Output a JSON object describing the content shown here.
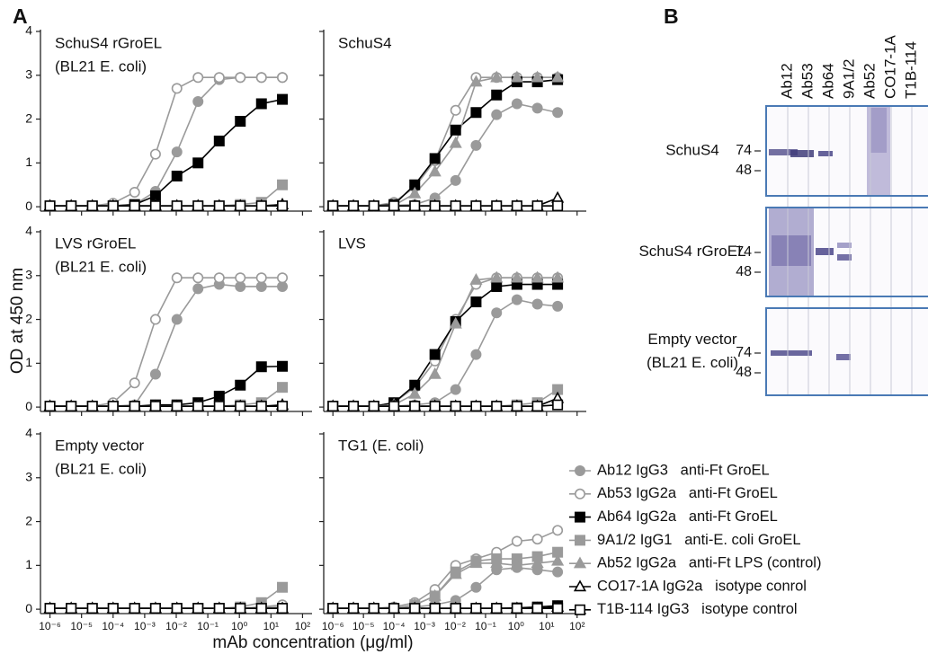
{
  "chart_data": {
    "type": "line",
    "panel_label": "A",
    "log_x": true,
    "x_label": "mAb concentration (μg/ml)",
    "y_label": "OD at 450 nm",
    "panels": [
      {
        "title": "SchuS4 rGroEL",
        "subtitle": "(BL21 E. coli)"
      },
      {
        "title": "SchuS4"
      },
      {
        "title": "LVS rGroEL",
        "subtitle": "(BL21 E. coli)"
      },
      {
        "title": "LVS"
      },
      {
        "title": "Empty vector",
        "subtitle": "(BL21 E. coli)"
      },
      {
        "title": "TG1 (E. coli)"
      }
    ],
    "x": [
      1e-06,
      4.7e-06,
      2.2e-05,
      0.0001,
      0.00048,
      0.0022,
      0.0105,
      0.049,
      0.23,
      1.07,
      5,
      23
    ],
    "xlim": [
      5e-07,
      200
    ],
    "xticks": [
      {
        "value": 1e-06,
        "label": "10⁻⁶"
      },
      {
        "value": 1e-05,
        "label": "10⁻⁵"
      },
      {
        "value": 0.0001,
        "label": "10⁻⁴"
      },
      {
        "value": 0.001,
        "label": "10⁻³"
      },
      {
        "value": 0.01,
        "label": "10⁻²"
      },
      {
        "value": 0.1,
        "label": "10⁻¹"
      },
      {
        "value": 1,
        "label": "10⁰"
      },
      {
        "value": 10,
        "label": "10¹"
      },
      {
        "value": 100,
        "label": "10²"
      }
    ],
    "ylim": [
      -0.1,
      4
    ],
    "yticks": [
      0,
      1,
      2,
      3,
      4
    ],
    "series": [
      {
        "name": "Ab12 IgG3   anti-Ft GroEL",
        "color": "#9a9a9a",
        "marker": "circle",
        "filled": true,
        "values": [
          [
            0.02,
            0.02,
            0.02,
            0.02,
            0.05,
            0.35,
            1.25,
            2.4,
            2.9,
            2.95,
            2.95,
            2.95
          ],
          [
            0.02,
            0.02,
            0.02,
            0.03,
            0.05,
            0.2,
            0.6,
            1.4,
            2.1,
            2.35,
            2.25,
            2.15
          ],
          [
            0.02,
            0.02,
            0.02,
            0.02,
            0.05,
            0.75,
            2.0,
            2.7,
            2.8,
            2.75,
            2.75,
            2.75
          ],
          [
            0.02,
            0.02,
            0.02,
            0.02,
            0.05,
            0.1,
            0.4,
            1.2,
            2.15,
            2.45,
            2.35,
            2.3
          ],
          [
            0.02,
            0.02,
            0.02,
            0.02,
            0.02,
            0.02,
            0.02,
            0.02,
            0.02,
            0.02,
            0.03,
            0.05
          ],
          [
            0.02,
            0.02,
            0.02,
            0.02,
            0.05,
            0.1,
            0.2,
            0.5,
            0.9,
            0.95,
            0.9,
            0.85
          ]
        ]
      },
      {
        "name": "Ab53 IgG2a   anti-Ft GroEL",
        "color": "#9a9a9a",
        "marker": "circle",
        "filled": false,
        "values": [
          [
            0.02,
            0.02,
            0.02,
            0.08,
            0.33,
            1.2,
            2.7,
            2.95,
            2.95,
            2.95,
            2.95,
            2.95
          ],
          [
            0.02,
            0.02,
            0.02,
            0.1,
            0.45,
            1.05,
            2.2,
            2.95,
            2.95,
            2.95,
            2.95,
            2.95
          ],
          [
            0.02,
            0.02,
            0.02,
            0.1,
            0.55,
            2.0,
            2.95,
            2.95,
            2.95,
            2.95,
            2.95,
            2.95
          ],
          [
            0.02,
            0.02,
            0.02,
            0.1,
            0.45,
            1.05,
            2.0,
            2.8,
            2.95,
            2.95,
            2.95,
            2.95
          ],
          [
            0.02,
            0.02,
            0.02,
            0.02,
            0.02,
            0.02,
            0.02,
            0.02,
            0.02,
            0.02,
            0.05,
            0.1
          ],
          [
            0.02,
            0.02,
            0.02,
            0.05,
            0.15,
            0.45,
            1.0,
            1.15,
            1.3,
            1.55,
            1.6,
            1.8
          ]
        ]
      },
      {
        "name": "Ab64 IgG2a   anti-Ft GroEL",
        "color": "#000000",
        "marker": "square",
        "filled": true,
        "values": [
          [
            0.02,
            0.02,
            0.02,
            0.02,
            0.05,
            0.25,
            0.7,
            1.0,
            1.5,
            1.95,
            2.35,
            2.45
          ],
          [
            0.02,
            0.02,
            0.02,
            0.05,
            0.5,
            1.1,
            1.75,
            2.15,
            2.55,
            2.85,
            2.85,
            2.9
          ],
          [
            0.02,
            0.02,
            0.02,
            0.02,
            0.02,
            0.05,
            0.05,
            0.1,
            0.25,
            0.5,
            0.92,
            0.93
          ],
          [
            0.02,
            0.02,
            0.02,
            0.1,
            0.5,
            1.2,
            1.95,
            2.4,
            2.75,
            2.8,
            2.8,
            2.8
          ],
          [
            0.02,
            0.02,
            0.02,
            0.02,
            0.02,
            0.02,
            0.02,
            0.02,
            0.02,
            0.02,
            0.02,
            0.02
          ],
          [
            0.02,
            0.02,
            0.02,
            0.02,
            0.02,
            0.02,
            0.02,
            0.02,
            0.02,
            0.03,
            0.05,
            0.08
          ]
        ]
      },
      {
        "name": "9A1/2 IgG1   anti-E. coli GroEL",
        "color": "#9a9a9a",
        "marker": "square",
        "filled": true,
        "values": [
          [
            0.02,
            0.02,
            0.02,
            0.02,
            0.02,
            0.02,
            0.02,
            0.02,
            0.02,
            0.05,
            0.1,
            0.5
          ],
          [
            0.02,
            0.02,
            0.02,
            0.02,
            0.02,
            0.02,
            0.02,
            0.02,
            0.02,
            0.02,
            0.02,
            0.02
          ],
          [
            0.02,
            0.02,
            0.02,
            0.02,
            0.02,
            0.02,
            0.02,
            0.02,
            0.02,
            0.05,
            0.1,
            0.45
          ],
          [
            0.02,
            0.02,
            0.02,
            0.02,
            0.02,
            0.02,
            0.02,
            0.02,
            0.02,
            0.05,
            0.1,
            0.4
          ],
          [
            0.02,
            0.02,
            0.02,
            0.02,
            0.02,
            0.02,
            0.02,
            0.02,
            0.02,
            0.05,
            0.15,
            0.5
          ],
          [
            0.02,
            0.02,
            0.02,
            0.02,
            0.1,
            0.3,
            0.85,
            1.1,
            1.15,
            1.15,
            1.2,
            1.3
          ]
        ]
      },
      {
        "name": "Ab52 IgG2a   anti-Ft LPS (control)",
        "color": "#9a9a9a",
        "marker": "triangle",
        "filled": true,
        "values": [
          [
            0.02,
            0.02,
            0.02,
            0.02,
            0.02,
            0.02,
            0.02,
            0.02,
            0.02,
            0.02,
            0.02,
            0.05
          ],
          [
            0.02,
            0.02,
            0.02,
            0.03,
            0.3,
            0.8,
            1.45,
            2.85,
            2.95,
            2.95,
            2.95,
            2.95
          ],
          [
            0.02,
            0.02,
            0.02,
            0.02,
            0.02,
            0.02,
            0.02,
            0.02,
            0.02,
            0.02,
            0.02,
            0.02
          ],
          [
            0.02,
            0.02,
            0.02,
            0.05,
            0.3,
            0.75,
            1.9,
            2.9,
            2.95,
            2.95,
            2.95,
            2.95
          ],
          [
            0.02,
            0.02,
            0.02,
            0.02,
            0.02,
            0.02,
            0.02,
            0.02,
            0.02,
            0.02,
            0.02,
            0.02
          ],
          [
            0.02,
            0.02,
            0.02,
            0.02,
            0.1,
            0.3,
            0.8,
            1.05,
            1.05,
            1.0,
            1.05,
            1.1
          ]
        ]
      },
      {
        "name": "CO17-1A IgG2a   isotype conrol",
        "color": "#000000",
        "marker": "triangle",
        "filled": false,
        "values": [
          [
            0.02,
            0.02,
            0.02,
            0.02,
            0.02,
            0.02,
            0.02,
            0.02,
            0.02,
            0.02,
            0.02,
            0.05
          ],
          [
            0.02,
            0.02,
            0.02,
            0.02,
            0.02,
            0.02,
            0.02,
            0.02,
            0.02,
            0.02,
            0.02,
            0.2
          ],
          [
            0.02,
            0.02,
            0.02,
            0.02,
            0.02,
            0.02,
            0.02,
            0.02,
            0.02,
            0.02,
            0.02,
            0.05
          ],
          [
            0.02,
            0.02,
            0.02,
            0.02,
            0.02,
            0.02,
            0.02,
            0.02,
            0.02,
            0.02,
            0.02,
            0.2
          ],
          [
            0.02,
            0.02,
            0.02,
            0.02,
            0.02,
            0.02,
            0.02,
            0.02,
            0.02,
            0.02,
            0.02,
            0.02
          ],
          [
            0.02,
            0.02,
            0.02,
            0.02,
            0.02,
            0.02,
            0.02,
            0.02,
            0.02,
            0.02,
            0.02,
            0.05
          ]
        ]
      },
      {
        "name": "T1B-114 IgG3   isotype control",
        "color": "#000000",
        "marker": "square",
        "filled": false,
        "values": [
          [
            0.02,
            0.02,
            0.02,
            0.02,
            0.02,
            0.02,
            0.02,
            0.02,
            0.02,
            0.02,
            0.02,
            0.02
          ],
          [
            0.02,
            0.02,
            0.02,
            0.02,
            0.02,
            0.02,
            0.02,
            0.02,
            0.02,
            0.02,
            0.02,
            0.02
          ],
          [
            0.02,
            0.02,
            0.02,
            0.02,
            0.02,
            0.02,
            0.02,
            0.02,
            0.02,
            0.02,
            0.02,
            0.02
          ],
          [
            0.02,
            0.02,
            0.02,
            0.02,
            0.02,
            0.02,
            0.02,
            0.02,
            0.02,
            0.02,
            0.02,
            0.05
          ],
          [
            0.02,
            0.02,
            0.02,
            0.02,
            0.02,
            0.02,
            0.02,
            0.02,
            0.02,
            0.02,
            0.02,
            0.02
          ],
          [
            0.02,
            0.02,
            0.02,
            0.02,
            0.02,
            0.02,
            0.02,
            0.02,
            0.02,
            0.02,
            0.02,
            0.02
          ]
        ]
      }
    ]
  },
  "blot": {
    "label": "B",
    "lanes": [
      "Ab12",
      "Ab53",
      "Ab64",
      "9A1/2",
      "Ab52",
      "CO17-1A",
      "T1B-114"
    ],
    "rows": [
      {
        "label": [
          "SchuS4"
        ],
        "markers": [
          74,
          48
        ]
      },
      {
        "label": [
          "SchuS4 rGroEL"
        ],
        "markers": [
          74,
          48
        ]
      },
      {
        "label": [
          "Empty vector",
          "(BL21 E. coli)"
        ],
        "markers": [
          74,
          48
        ]
      }
    ]
  }
}
